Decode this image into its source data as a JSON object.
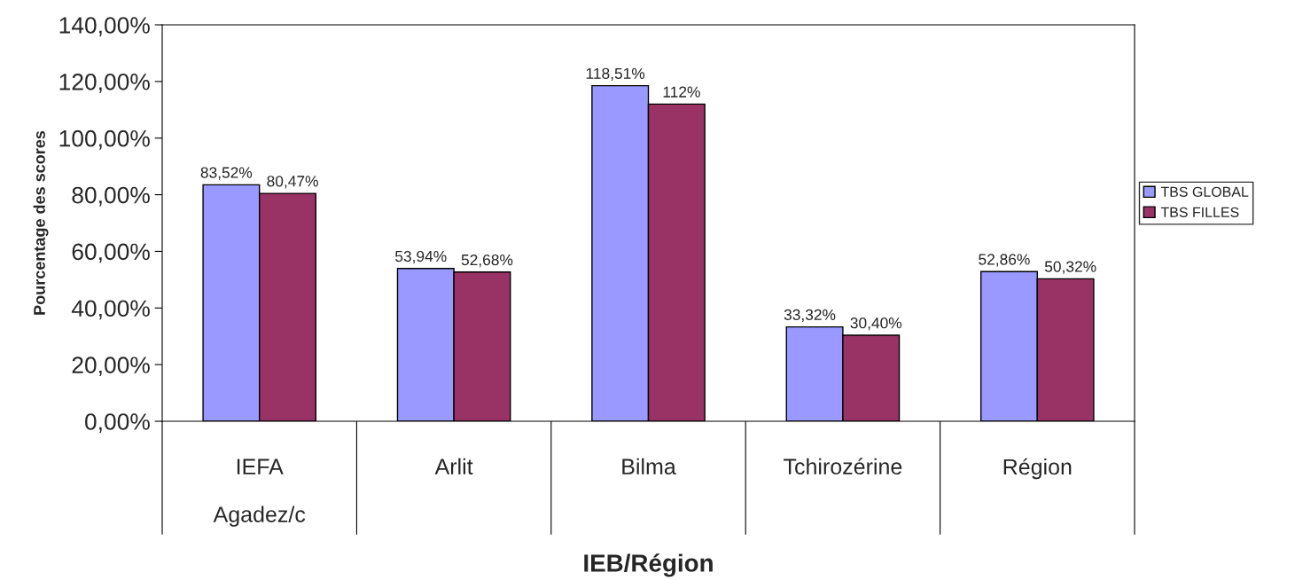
{
  "chart_data": {
    "type": "bar",
    "xlabel": "IEB/Région",
    "ylabel": "Pourcentage des scores",
    "categories": [
      "IEFA\n\nAgadez/c",
      "Arlit",
      "Bilma",
      "Tchirozérine",
      "Région"
    ],
    "series": [
      {
        "name": "TBS GLOBAL",
        "color": "#9999ff",
        "values": [
          83.52,
          53.94,
          118.51,
          33.32,
          52.86
        ],
        "value_labels": [
          "83,52%",
          "53,94%",
          "118,51%",
          "33,32%",
          "52,86%"
        ]
      },
      {
        "name": "TBS FILLES",
        "color": "#993366",
        "values": [
          80.47,
          52.68,
          112,
          30.4,
          50.32
        ],
        "value_labels": [
          "80,47%",
          "52,68%",
          "112%",
          "30,40%",
          "50,32%"
        ]
      }
    ],
    "ylim": [
      0,
      140
    ],
    "yticks": [
      {
        "value": 0,
        "label": "0,00%"
      },
      {
        "value": 20,
        "label": "20,00%"
      },
      {
        "value": 40,
        "label": "40,00%"
      },
      {
        "value": 60,
        "label": "60,00%"
      },
      {
        "value": 80,
        "label": "80,00%"
      },
      {
        "value": 100,
        "label": "100,00%"
      },
      {
        "value": 120,
        "label": "120,00%"
      },
      {
        "value": 140,
        "label": "140,00%"
      }
    ],
    "grid": false,
    "legend": "right"
  }
}
